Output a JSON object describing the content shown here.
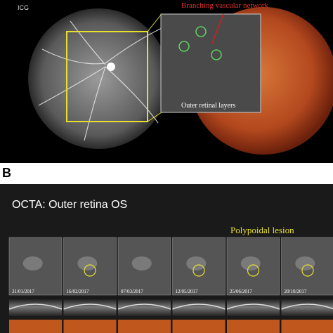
{
  "panel_a": {
    "imaging_label": "ICG",
    "annotation": "Branching vascular network",
    "layer_label": "Outer retinal layers"
  },
  "panel_b": {
    "letter": "B",
    "title": "OCTA: Outer retina OS",
    "annotation": "Polypoidal lesion",
    "dates": [
      "31/01/2017",
      "16/02/2017",
      "07/03/2017",
      "12/05/2017",
      "25/06/2017",
      "20/10/2017"
    ]
  }
}
